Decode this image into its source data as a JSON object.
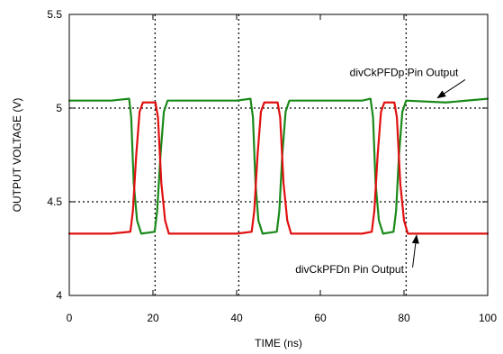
{
  "chart_data": {
    "type": "line",
    "title": "",
    "xlabel": "TIME (ns)",
    "ylabel": "OUTPUT VOLTAGE (V)",
    "xlim": [
      0,
      100
    ],
    "ylim": [
      4,
      5.5
    ],
    "xticks": [
      0,
      20,
      40,
      60,
      80,
      100
    ],
    "xtick_labels": [
      "0",
      "20",
      "40",
      "60",
      "80",
      "100"
    ],
    "yticks": [
      4,
      4.5,
      5,
      5.5
    ],
    "ytick_labels": [
      "4",
      "4.5",
      "5",
      "5.5"
    ],
    "grid": "dotted",
    "grid_x": [
      20.5,
      40.5,
      80.5
    ],
    "grid_y": [
      4.5,
      5.0
    ],
    "series": [
      {
        "name": "divCkPFDp Pin Output",
        "color": "#1a8a1a",
        "x": [
          0,
          10,
          14.3,
          14.8,
          15.4,
          16.2,
          17.2,
          20.4,
          21.0,
          21.8,
          22.6,
          23.5,
          30,
          40,
          43.3,
          43.9,
          44.5,
          45.2,
          46.2,
          49.6,
          50.2,
          50.9,
          51.7,
          52.6,
          60,
          70,
          72.0,
          72.6,
          73.2,
          74.0,
          75.0,
          77.5,
          78.1,
          78.8,
          79.6,
          80.5,
          90,
          100
        ],
        "values": [
          5.04,
          5.04,
          5.05,
          4.95,
          4.6,
          4.4,
          4.33,
          4.34,
          4.45,
          4.75,
          4.98,
          5.04,
          5.04,
          5.04,
          5.05,
          4.95,
          4.6,
          4.4,
          4.33,
          4.34,
          4.45,
          4.75,
          4.98,
          5.04,
          5.04,
          5.04,
          5.05,
          4.95,
          4.6,
          4.4,
          4.33,
          4.34,
          4.45,
          4.75,
          4.98,
          5.04,
          5.03,
          5.05
        ]
      },
      {
        "name": "divCkPFDn Pin Output",
        "color": "#e01010",
        "x": [
          0,
          10,
          14.6,
          15.2,
          16.0,
          16.8,
          17.6,
          20.6,
          21.2,
          22.0,
          22.9,
          23.8,
          30,
          40,
          43.6,
          44.2,
          45.0,
          45.8,
          46.6,
          49.8,
          50.4,
          51.2,
          52.1,
          53.0,
          60,
          70,
          72.3,
          72.9,
          73.7,
          74.5,
          75.3,
          77.7,
          78.3,
          79.1,
          80.0,
          80.9,
          90,
          100
        ],
        "values": [
          4.33,
          4.33,
          4.34,
          4.45,
          4.75,
          4.98,
          5.03,
          5.03,
          4.95,
          4.6,
          4.4,
          4.33,
          4.33,
          4.33,
          4.34,
          4.45,
          4.75,
          4.98,
          5.03,
          5.03,
          4.95,
          4.6,
          4.4,
          4.33,
          4.33,
          4.33,
          4.34,
          4.45,
          4.75,
          4.98,
          5.03,
          5.03,
          4.95,
          4.6,
          4.4,
          4.33,
          4.33,
          4.33
        ]
      }
    ],
    "annotations": [
      {
        "text": "divCkPFDp Pin Output",
        "target": [
          88,
          5.04
        ],
        "text_at": [
          80,
          5.19
        ]
      },
      {
        "text": "divCkPFDn Pin Output",
        "target": [
          83,
          4.34
        ],
        "text_at": [
          67,
          4.14
        ]
      }
    ],
    "colors": {
      "axis": "#000000",
      "grid": "#000000",
      "background": "#ffffff"
    }
  }
}
